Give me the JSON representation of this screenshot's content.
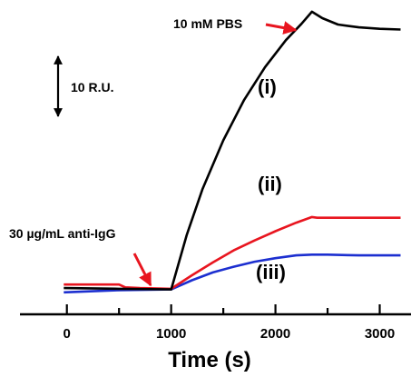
{
  "chart_data": {
    "type": "line",
    "xlabel": "Time (s)",
    "ylabel": "",
    "xlim": [
      -450,
      3300
    ],
    "ylim": [
      -3,
      41
    ],
    "x_ticks": [
      0,
      1000,
      2000,
      3000
    ],
    "x_tick_labels": [
      "0",
      "1000",
      "2000",
      "3000"
    ],
    "grid": false,
    "scale_bar": {
      "label": "10 R.U.",
      "value": 10
    },
    "annotations": [
      {
        "text": "10 mM PBS",
        "x": 2350,
        "y": 39.5,
        "arrow_color": "#e8151f"
      },
      {
        "text": "30 µg/mL anti-IgG",
        "x": 1000,
        "y": 0.5,
        "arrow_color": "#e8151f"
      }
    ],
    "series": [
      {
        "name": "(i)",
        "color": "#000000",
        "x": [
          -30,
          500,
          1000,
          1150,
          1300,
          1500,
          1700,
          1900,
          2100,
          2250,
          2350,
          2450,
          2600,
          2800,
          3000,
          3200
        ],
        "y": [
          0.7,
          0.6,
          0.5,
          8.2,
          14.6,
          21.5,
          27.2,
          31.8,
          35.6,
          37.9,
          39.6,
          38.7,
          37.8,
          37.4,
          37.2,
          37.1
        ]
      },
      {
        "name": "(ii)",
        "color": "#e8151f",
        "x": [
          -30,
          200,
          500,
          560,
          700,
          1000,
          1200,
          1400,
          1600,
          1800,
          2000,
          2200,
          2350,
          2400,
          2700,
          3000,
          3200
        ],
        "y": [
          1.2,
          1.2,
          1.2,
          0.8,
          0.7,
          0.6,
          2.5,
          4.3,
          6.0,
          7.4,
          8.7,
          9.9,
          10.7,
          10.6,
          10.6,
          10.6,
          10.6
        ]
      },
      {
        "name": "(iii)",
        "color": "#1c2fd0",
        "x": [
          -30,
          500,
          1000,
          1200,
          1400,
          1600,
          1800,
          2000,
          2200,
          2350,
          2500,
          2800,
          3000,
          3200
        ],
        "y": [
          0.1,
          0.4,
          0.5,
          1.8,
          2.9,
          3.7,
          4.4,
          4.9,
          5.3,
          5.4,
          5.4,
          5.3,
          5.3,
          5.3
        ]
      }
    ]
  }
}
